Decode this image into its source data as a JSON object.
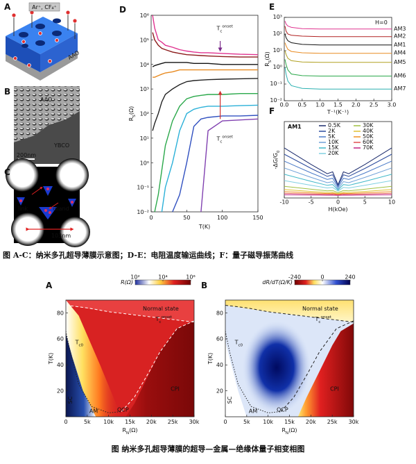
{
  "top_figure": {
    "panel_a": {
      "label": "A",
      "ions": "Ar⁺, CF₄⁺",
      "material": "AAO"
    },
    "panel_b": {
      "label": "B",
      "top": "AAO",
      "bottom": "YBCO",
      "scale": "200nm"
    },
    "panel_c": {
      "label": "C",
      "link": "link",
      "island": "island",
      "size": "103nm"
    },
    "caption": "图    A-C：纳米多孔超导薄膜示意图；D-E：电阻温度输运曲线；F：量子磁导振荡曲线"
  },
  "chart_data": [
    {
      "type": "line",
      "panel": "D",
      "log_y": true,
      "xlabel": "T(K)",
      "ylabel": {
        "base": "R",
        "sub": "S",
        "rest": "(Ω)"
      },
      "xlim": [
        0,
        150
      ],
      "xticks": [
        0,
        50,
        100,
        150
      ],
      "ylim": [
        0.01,
        1000000
      ],
      "yticks": [
        {
          "value": 0.01,
          "label": "10⁻²"
        },
        {
          "value": 0.1,
          "label": "10⁻¹"
        },
        {
          "value": 1,
          "label": "10⁰"
        },
        {
          "value": 10,
          "label": "10¹"
        },
        {
          "value": 100,
          "label": "10²"
        },
        {
          "value": 1000,
          "label": "10³"
        },
        {
          "value": 10000,
          "label": "10⁴"
        },
        {
          "value": 100000,
          "label": "10⁵"
        },
        {
          "value": 1000000,
          "label": "10⁶"
        }
      ],
      "x": [
        2,
        5,
        10,
        15,
        20,
        30,
        40,
        50,
        60,
        70,
        80,
        100,
        125,
        150
      ],
      "series": [
        {
          "color": "#e0338f",
          "values": [
            1000000,
            300000,
            100000,
            80000,
            60000,
            50000,
            40000,
            35000,
            32000,
            30000,
            30000,
            28000,
            26000,
            25000
          ]
        },
        {
          "color": "#8b1a1a",
          "values": [
            200000,
            100000,
            60000,
            45000,
            40000,
            32000,
            28000,
            25000,
            24000,
            23000,
            22000,
            21000,
            20000,
            20000
          ]
        },
        {
          "color": "#e88a20",
          "values": [
            3000,
            3000,
            3500,
            4000,
            4500,
            5000,
            6000,
            6000,
            6000,
            6000,
            6000,
            6000,
            6000,
            6000
          ]
        },
        {
          "color": "#111111",
          "values": [
            8000,
            9000,
            10000,
            11000,
            12000,
            12000,
            12000,
            12000,
            11000,
            11000,
            11000,
            10000,
            10000,
            10000
          ]
        },
        {
          "color": "#222222",
          "values": [
            20,
            40,
            100,
            300,
            600,
            1000,
            1500,
            2000,
            2200,
            2300,
            2400,
            2500,
            2600,
            2700
          ]
        },
        {
          "color": "#2aa84a",
          "values": [
            null,
            0.01,
            0.05,
            0.5,
            5,
            50,
            200,
            400,
            500,
            550,
            600,
            600,
            650,
            650
          ]
        },
        {
          "color": "#2ab0d8",
          "values": [
            null,
            null,
            null,
            0.01,
            0.1,
            1,
            20,
            100,
            150,
            180,
            200,
            200,
            210,
            220
          ]
        },
        {
          "color": "#3050c0",
          "values": [
            null,
            null,
            null,
            null,
            null,
            0.01,
            0.05,
            1,
            30,
            60,
            70,
            80,
            80,
            85
          ]
        },
        {
          "color": "#8040b0",
          "values": [
            null,
            null,
            null,
            null,
            null,
            null,
            null,
            null,
            null,
            0.01,
            20,
            50,
            55,
            60
          ]
        }
      ],
      "annotations": [
        {
          "text": {
            "base": "T",
            "sub": "c",
            "sup": "onset"
          },
          "color": "#7a2a8a"
        },
        {
          "text": {
            "base": "T",
            "sub": "c",
            "sup": "onset"
          },
          "color": "#d03030"
        }
      ]
    },
    {
      "type": "line",
      "panel": "E",
      "log_y": true,
      "annotation": "H=0",
      "legend": "right",
      "xlabel": "T⁻¹(K⁻¹)",
      "ylabel": {
        "base": "R",
        "sub": "S",
        "rest": "(Ω)"
      },
      "xlim": [
        0,
        3
      ],
      "xticks": [
        {
          "value": 0,
          "label": "0.0"
        },
        0.5,
        {
          "value": 1,
          "label": "1.0"
        },
        1.5,
        {
          "value": 2,
          "label": "2.0"
        },
        2.5,
        {
          "value": 3,
          "label": "3.0"
        }
      ],
      "ylim": [
        0.01,
        1000
      ],
      "yticks": [
        {
          "value": 0.01,
          "label": "10⁻²"
        },
        {
          "value": 0.1,
          "label": "10⁻¹"
        },
        {
          "value": 1,
          "label": "10⁰"
        },
        {
          "value": 10,
          "label": "10¹"
        },
        {
          "value": 100,
          "label": "10²"
        },
        {
          "value": 1000,
          "label": "10³"
        }
      ],
      "x": [
        0.02,
        0.05,
        0.1,
        0.2,
        0.5,
        1,
        1.5,
        2,
        2.5,
        3
      ],
      "series": [
        {
          "name": "AM3",
          "color": "#e0338f",
          "values": [
            600,
            400,
            300,
            250,
            210,
            200,
            200,
            200,
            200,
            200
          ]
        },
        {
          "name": "AM2",
          "color": "#b02020",
          "values": [
            300,
            150,
            100,
            85,
            75,
            70,
            70,
            70,
            70,
            70
          ]
        },
        {
          "name": "AM1",
          "color": "#111111",
          "values": [
            100,
            60,
            40,
            30,
            24,
            22,
            22,
            22,
            22,
            22
          ]
        },
        {
          "name": "AM4",
          "color": "#e88a20",
          "values": [
            30,
            20,
            12,
            9,
            7.5,
            7,
            7,
            7,
            7,
            7
          ]
        },
        {
          "name": "AM5",
          "color": "#b0a020",
          "values": [
            10,
            6,
            3.5,
            2.5,
            2.1,
            2,
            2,
            2,
            2,
            2
          ]
        },
        {
          "name": "AM6",
          "color": "#2aa84a",
          "values": [
            3,
            1.5,
            0.7,
            0.4,
            0.32,
            0.3,
            0.3,
            0.3,
            0.3,
            0.3
          ]
        },
        {
          "name": "AM7",
          "color": "#2ab0b0",
          "values": [
            1,
            0.4,
            0.15,
            0.08,
            0.055,
            0.05,
            0.05,
            0.05,
            0.05,
            0.05
          ]
        }
      ]
    },
    {
      "type": "line",
      "panel": "F",
      "annotation": "AM1",
      "legend": "top",
      "xlabel": "H(kOe)",
      "ylabel": {
        "base": "-ΔG/G",
        "sub": "0"
      },
      "xlim": [
        -10,
        10
      ],
      "xticks": [
        -10,
        -5,
        0,
        5,
        10
      ],
      "ylim": [
        -0.5,
        14
      ],
      "x": [
        -10,
        -5,
        -2,
        -1,
        0,
        1,
        2,
        5,
        10
      ],
      "series": [
        {
          "name": "0.5K",
          "color": "#1a2a6c",
          "values": [
            9,
            5.85,
            4.1,
            4.45,
            2,
            4.45,
            4.1,
            5.85,
            9
          ]
        },
        {
          "name": "2K",
          "color": "#2b4a9c",
          "values": [
            7.8,
            5.1,
            3.6,
            3.9,
            1.8,
            3.9,
            3.6,
            5.1,
            7.8
          ]
        },
        {
          "name": "5K",
          "color": "#4a7ac8",
          "values": [
            6.5,
            4.25,
            3,
            3.25,
            1.5,
            3.25,
            3,
            4.25,
            6.5
          ]
        },
        {
          "name": "10K",
          "color": "#6fa0d8",
          "values": [
            5.2,
            3.4,
            2.4,
            2.6,
            1.2,
            2.6,
            2.4,
            3.4,
            5.2
          ]
        },
        {
          "name": "15K",
          "color": "#40b8c8",
          "values": [
            4,
            2.65,
            1.9,
            2.05,
            1,
            2.05,
            1.9,
            2.65,
            4
          ]
        },
        {
          "name": "20K",
          "color": "#80d0e0",
          "values": [
            2.8,
            1.9,
            1.4,
            1.5,
            0.8,
            1.5,
            1.4,
            1.9,
            2.8
          ]
        },
        {
          "name": "30K",
          "color": "#a0c040",
          "values": [
            1.7,
            1.16,
            0.86,
            0.92,
            0.5,
            0.92,
            0.86,
            1.16,
            1.7
          ]
        },
        {
          "name": "40K",
          "color": "#e0c030",
          "values": [
            1.1,
            0.74,
            0.54,
            0.58,
            0.3,
            0.58,
            0.54,
            0.74,
            1.1
          ]
        },
        {
          "name": "50K",
          "color": "#f09020",
          "values": [
            0.7,
            0.48,
            0.35,
            0.38,
            0.2,
            0.38,
            0.35,
            0.48,
            0.7
          ]
        },
        {
          "name": "60K",
          "color": "#e05050",
          "values": [
            0.4,
            0.27,
            0.19,
            0.21,
            0.1,
            0.21,
            0.19,
            0.27,
            0.4
          ]
        },
        {
          "name": "70K",
          "color": "#c02080",
          "values": [
            0.1,
            0.06,
            0.03,
            0.04,
            0,
            0.04,
            0.03,
            0.06,
            0.1
          ]
        }
      ]
    },
    {
      "type": "phase_diagram",
      "panel": "A",
      "colormap": "resistance",
      "xlabel": {
        "base": "R",
        "sub": "N",
        "rest": "(Ω)"
      },
      "ylabel": "T(K)",
      "xlim": [
        0,
        30000
      ],
      "xticks": [
        0,
        {
          "value": 5000,
          "label": "5k"
        },
        {
          "value": 10000,
          "label": "10k"
        },
        {
          "value": 15000,
          "label": "15k"
        },
        {
          "value": 20000,
          "label": "20k"
        },
        {
          "value": 25000,
          "label": "25k"
        },
        {
          "value": 30000,
          "label": "30k"
        }
      ],
      "ylim": [
        0,
        90
      ],
      "yticks": [
        20,
        40,
        60,
        80
      ],
      "colorbar": {
        "label": "R(Ω)",
        "log": true,
        "lim": [
          100,
          1000000
        ],
        "ticks": [
          {
            "value": 100,
            "label": "10²"
          },
          {
            "value": 10000,
            "label": "10⁴"
          },
          {
            "value": 1000000,
            "label": "10⁶"
          }
        ]
      },
      "labels": {
        "normal": "Normal state",
        "onset": {
          "base": "T",
          "sub": "c",
          "sup": "onset"
        },
        "tc0": {
          "base": "T",
          "sub": "c0"
        },
        "sc": "SC",
        "am": "AM",
        "qcp": "QCP",
        "cpi": "CPI"
      }
    },
    {
      "type": "phase_diagram",
      "panel": "B",
      "colormap": "derivative",
      "xlabel": {
        "base": "R",
        "sub": "N",
        "rest": "(Ω)"
      },
      "ylabel": "T(K)",
      "xlim": [
        0,
        30000
      ],
      "xticks": [
        0,
        {
          "value": 5000,
          "label": "5k"
        },
        {
          "value": 10000,
          "label": "10k"
        },
        {
          "value": 15000,
          "label": "15k"
        },
        {
          "value": 20000,
          "label": "20k"
        },
        {
          "value": 25000,
          "label": "25k"
        },
        {
          "value": 30000,
          "label": "30k"
        }
      ],
      "ylim": [
        0,
        90
      ],
      "yticks": [
        20,
        40,
        60,
        80
      ],
      "colorbar": {
        "label": "dR/dT(Ω/K)",
        "log": false,
        "lim": [
          -240,
          240
        ],
        "ticks": [
          -240,
          0,
          240
        ]
      },
      "labels": {
        "normal": "Normal state",
        "onset": {
          "base": "T",
          "sub": "c",
          "sup": "onset"
        },
        "tc0": {
          "base": "T",
          "sub": "c0"
        },
        "sc": "SC",
        "am": "AM",
        "qcp": "QCP",
        "cpi": "CPI"
      }
    }
  ],
  "bottom_caption": "图    纳米多孔超导薄膜的超导—金属—绝缘体量子相变相图"
}
